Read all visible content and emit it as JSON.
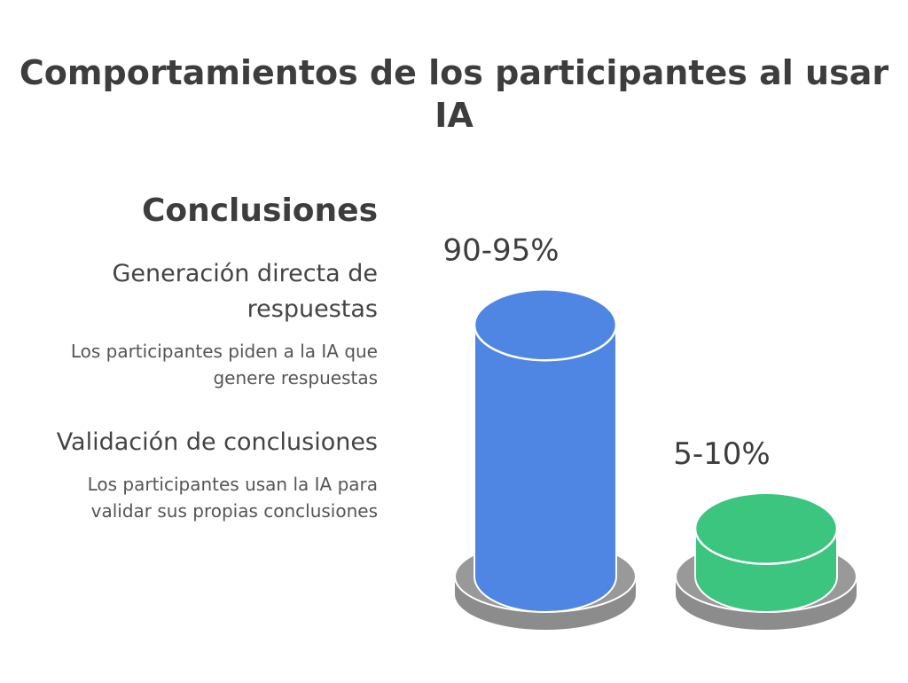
{
  "title": "Comportamientos de los participantes al usar IA",
  "conclusions_heading": "Conclusiones",
  "categories": [
    {
      "title": "Generación directa de respuestas",
      "description": "Los participantes piden a la IA que genere respuestas"
    },
    {
      "title": "Validación de conclusiones",
      "description": "Los participantes usan la IA para validar sus propias conclusiones"
    }
  ],
  "chart_data": {
    "type": "bar",
    "title": "Comportamientos de los participantes al usar IA",
    "categories": [
      "Generación directa de respuestas",
      "Validación de conclusiones"
    ],
    "values": [
      92.5,
      7.5
    ],
    "ranges": [
      [
        90,
        95
      ],
      [
        5,
        10
      ]
    ],
    "data_labels": [
      "90-95%",
      "5-10%"
    ],
    "colors": [
      "#4f86e4",
      "#3cc57f"
    ],
    "base_color": "#999999",
    "ylim": [
      0,
      100
    ],
    "grid": false,
    "legend": "left"
  }
}
